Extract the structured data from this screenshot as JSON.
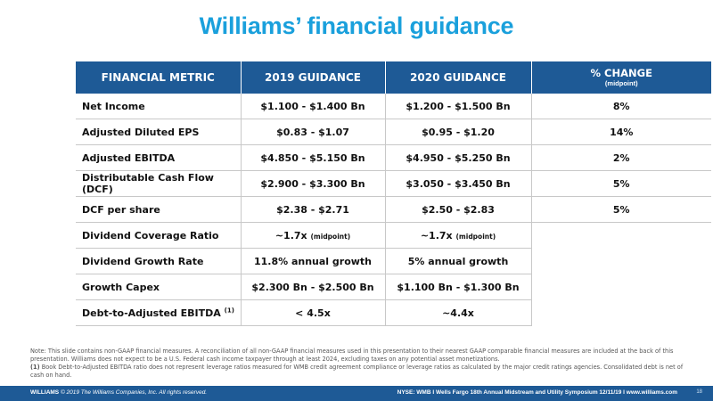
{
  "title": "Williams’ financial guidance",
  "table": {
    "headers": {
      "metric": "FINANCIAL METRIC",
      "g2019": "2019 GUIDANCE",
      "g2020": "2020 GUIDANCE",
      "change": "% CHANGE",
      "change_sub": "(midpoint)"
    },
    "rows": [
      {
        "metric": "Net Income",
        "g2019": "$1.100 - $1.400 Bn",
        "g2020": "$1.200 - $1.500 Bn",
        "change": "8%"
      },
      {
        "metric": "Adjusted Diluted EPS",
        "g2019": "$0.83 - $1.07",
        "g2020": "$0.95 - $1.20",
        "change": "14%"
      },
      {
        "metric": "Adjusted EBITDA",
        "g2019": "$4.850 - $5.150 Bn",
        "g2020": "$4.950 - $5.250 Bn",
        "change": "2%"
      },
      {
        "metric": "Distributable Cash Flow (DCF)",
        "g2019": "$2.900 - $3.300 Bn",
        "g2020": "$3.050 - $3.450 Bn",
        "change": "5%"
      },
      {
        "metric": "DCF per share",
        "g2019": "$2.38 - $2.71",
        "g2020": "$2.50 - $2.83",
        "change": "5%"
      },
      {
        "metric": "Dividend Coverage Ratio",
        "g2019": "~1.7x",
        "g2019_sub": "(midpoint)",
        "g2020": "~1.7x",
        "g2020_sub": "(midpoint)",
        "change": ""
      },
      {
        "metric": "Dividend Growth Rate",
        "g2019": "11.8% annual growth",
        "g2020": "5% annual growth",
        "change": ""
      },
      {
        "metric": "Growth Capex",
        "g2019": "$2.300 Bn - $2.500 Bn",
        "g2020": "$1.100 Bn - $1.300 Bn",
        "change": ""
      },
      {
        "metric": "Debt-to-Adjusted EBITDA",
        "metric_sup": "(1)",
        "g2019": "< 4.5x",
        "g2020": "~4.4x",
        "change": ""
      }
    ]
  },
  "notes": {
    "line1": "Note: This slide contains non-GAAP financial measures. A reconciliation of all non-GAAP financial measures used in this presentation to their nearest GAAP comparable financial measures are included at the back of this presentation. Williams does not expect to be a U.S. Federal cash income taxpayer through at least 2024, excluding taxes on any potential asset monetizations.",
    "line2_marker": "(1)",
    "line2": " Book Debt-to-Adjusted EBITDA ratio does not represent leverage ratios measured for WMB credit agreement compliance or leverage ratios as calculated by the major credit ratings agencies. Consolidated debt is net of cash on hand."
  },
  "footer": {
    "brand": "WILLIAMS",
    "copyright": " © 2019 The Williams Companies, Inc. All rights reserved.",
    "event": "NYSE: WMB   I   Wells Fargo 18th Annual Midstream and Utility Symposium 12/11/19   I   www.williams.com",
    "page": "18"
  }
}
